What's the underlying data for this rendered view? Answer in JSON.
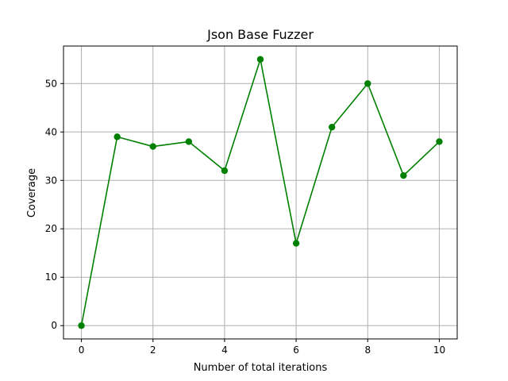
{
  "chart_data": {
    "type": "line",
    "title": "Json Base Fuzzer",
    "xlabel": "Number of total iterations",
    "ylabel": "Coverage",
    "x": [
      0,
      1,
      2,
      3,
      4,
      5,
      6,
      7,
      8,
      9,
      10
    ],
    "series": [
      {
        "values": [
          0,
          39,
          37,
          38,
          32,
          55,
          17,
          41,
          50,
          31,
          38
        ],
        "color": "#008000",
        "marker": "circle"
      }
    ],
    "xticks": [
      0,
      2,
      4,
      6,
      8,
      10
    ],
    "yticks": [
      0,
      10,
      20,
      30,
      40,
      50
    ],
    "xlim": [
      -0.5,
      10.5
    ],
    "ylim": [
      -2.75,
      57.75
    ],
    "grid": true,
    "grid_color": "#b0b0b0",
    "legend": "none"
  }
}
